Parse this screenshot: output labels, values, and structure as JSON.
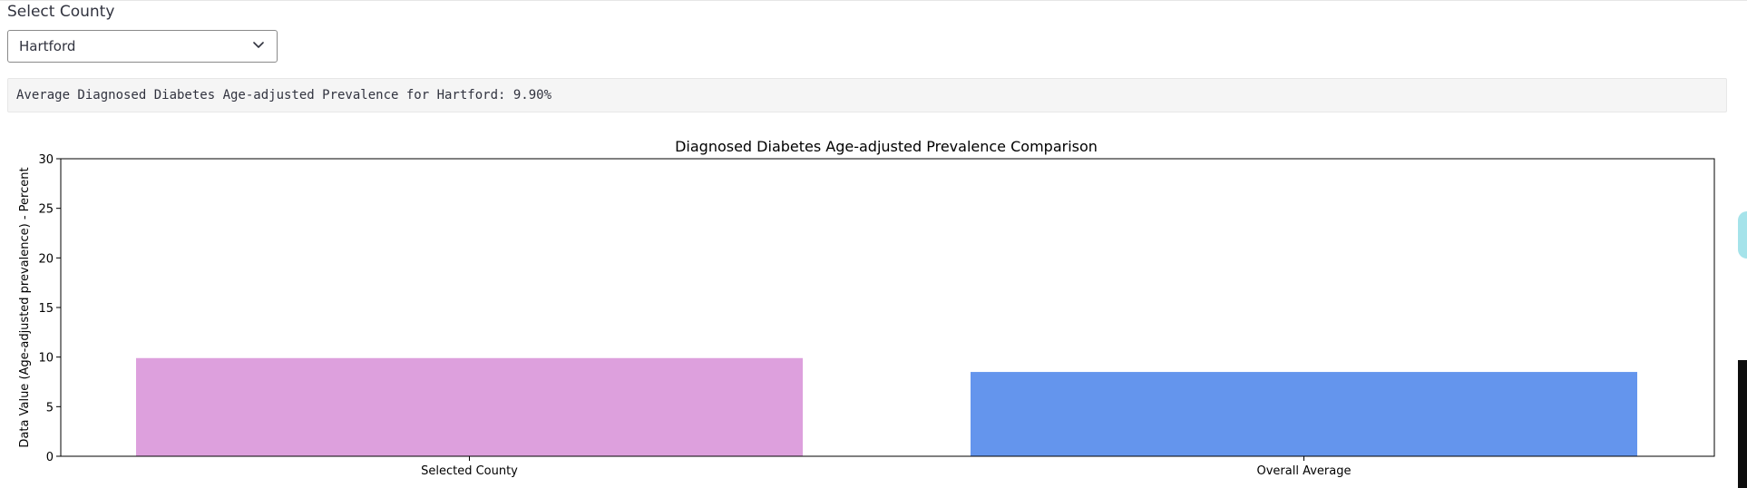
{
  "county_select": {
    "label": "Select County",
    "value": "Hartford"
  },
  "info": {
    "text": "Average Diagnosed Diabetes Age-adjusted Prevalence for Hartford: 9.90%"
  },
  "chart_data": {
    "type": "bar",
    "title": "Diagnosed Diabetes Age-adjusted Prevalence Comparison",
    "xlabel": "",
    "ylabel": "Data Value (Age-adjusted prevalence) - Percent",
    "categories": [
      "Selected County",
      "Overall Average"
    ],
    "values": [
      9.9,
      8.5
    ],
    "colors": [
      "#dda0dd",
      "#6495ed"
    ],
    "ylim": [
      0,
      30
    ],
    "yticks": [
      0,
      5,
      10,
      15,
      20,
      25,
      30
    ],
    "grid": false
  }
}
